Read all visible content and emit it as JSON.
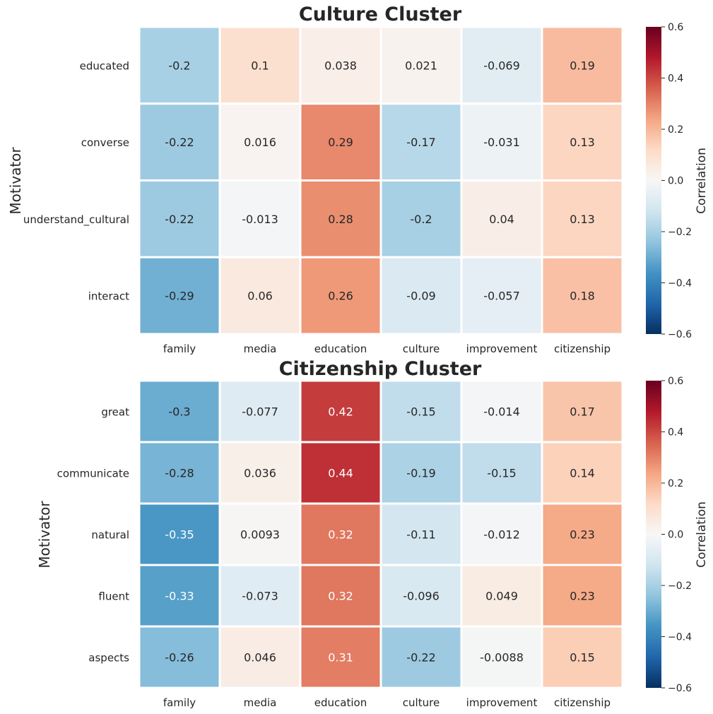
{
  "chart_data": [
    {
      "type": "heatmap",
      "title": "Culture Cluster",
      "ylabel": "Motivator",
      "xlabel": "",
      "x_categories": [
        "family",
        "media",
        "education",
        "culture",
        "improvement",
        "citizenship"
      ],
      "y_categories": [
        "educated",
        "converse",
        "understand_cultural",
        "interact"
      ],
      "values": [
        [
          -0.2,
          0.1,
          0.038,
          0.021,
          -0.069,
          0.19
        ],
        [
          -0.22,
          0.016,
          0.29,
          -0.17,
          -0.031,
          0.13
        ],
        [
          -0.22,
          -0.013,
          0.28,
          -0.2,
          0.04,
          0.13
        ],
        [
          -0.29,
          0.06,
          0.26,
          -0.09,
          -0.057,
          0.18
        ]
      ],
      "value_labels": [
        [
          "-0.2",
          "0.1",
          "0.038",
          "0.021",
          "-0.069",
          "0.19"
        ],
        [
          "-0.22",
          "0.016",
          "0.29",
          "-0.17",
          "-0.031",
          "0.13"
        ],
        [
          "-0.22",
          "-0.013",
          "0.28",
          "-0.2",
          "0.04",
          "0.13"
        ],
        [
          "-0.29",
          "0.06",
          "0.26",
          "-0.09",
          "-0.057",
          "0.18"
        ]
      ],
      "colorbar": {
        "label": "Correlation",
        "vmin": -0.6,
        "vmax": 0.6,
        "ticks": [
          0.6,
          0.4,
          0.2,
          0.0,
          -0.2,
          -0.4,
          -0.6
        ],
        "tick_labels": [
          "0.6",
          "0.4",
          "0.2",
          "0.0",
          "−0.2",
          "−0.4",
          "−0.6"
        ],
        "colormap": "RdBu_r"
      }
    },
    {
      "type": "heatmap",
      "title": "Citizenship Cluster",
      "ylabel": "Motivator",
      "xlabel": "",
      "x_categories": [
        "family",
        "media",
        "education",
        "culture",
        "improvement",
        "citizenship"
      ],
      "y_categories": [
        "great",
        "communicate",
        "natural",
        "fluent",
        "aspects"
      ],
      "values": [
        [
          -0.3,
          -0.077,
          0.42,
          -0.15,
          -0.014,
          0.17
        ],
        [
          -0.28,
          0.036,
          0.44,
          -0.19,
          -0.15,
          0.14
        ],
        [
          -0.35,
          0.0093,
          0.32,
          -0.11,
          -0.012,
          0.23
        ],
        [
          -0.33,
          -0.073,
          0.32,
          -0.096,
          0.049,
          0.23
        ],
        [
          -0.26,
          0.046,
          0.31,
          -0.22,
          -0.0088,
          0.15
        ]
      ],
      "value_labels": [
        [
          "-0.3",
          "-0.077",
          "0.42",
          "-0.15",
          "-0.014",
          "0.17"
        ],
        [
          "-0.28",
          "0.036",
          "0.44",
          "-0.19",
          "-0.15",
          "0.14"
        ],
        [
          "-0.35",
          "0.0093",
          "0.32",
          "-0.11",
          "-0.012",
          "0.23"
        ],
        [
          "-0.33",
          "-0.073",
          "0.32",
          "-0.096",
          "0.049",
          "0.23"
        ],
        [
          "-0.26",
          "0.046",
          "0.31",
          "-0.22",
          "-0.0088",
          "0.15"
        ]
      ],
      "colorbar": {
        "label": "Correlation",
        "vmin": -0.6,
        "vmax": 0.6,
        "ticks": [
          0.6,
          0.4,
          0.2,
          0.0,
          -0.2,
          -0.4,
          -0.6
        ],
        "tick_labels": [
          "0.6",
          "0.4",
          "0.2",
          "0.0",
          "−0.2",
          "−0.4",
          "−0.6"
        ],
        "colormap": "RdBu_r"
      }
    }
  ]
}
